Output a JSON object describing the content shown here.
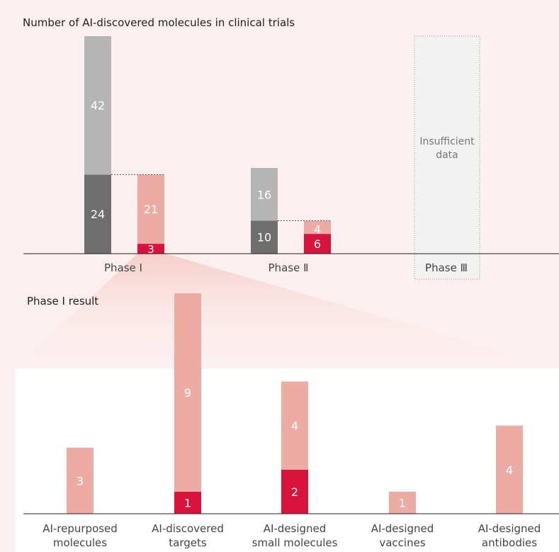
{
  "chart_data": [
    {
      "type": "bar",
      "title": "Number of AI-discovered molecules in clinical trials",
      "categories": [
        "Phase Ⅰ",
        "Phase Ⅱ",
        "Phase Ⅲ"
      ],
      "groups": [
        {
          "name": "",
          "stack": [
            {
              "value": 24,
              "color": "#6e6e6e"
            },
            {
              "value": 42,
              "color": "#b5b5b5"
            }
          ]
        },
        {
          "name": "",
          "stack": [
            {
              "value": 3,
              "color": "#d9143c"
            },
            {
              "value": 21,
              "color": "#ecaca4"
            }
          ]
        }
      ],
      "bars": [
        {
          "category": "Phase Ⅰ",
          "group": 0,
          "segments": [
            24,
            42
          ]
        },
        {
          "category": "Phase Ⅰ",
          "group": 1,
          "segments": [
            3,
            21
          ]
        },
        {
          "category": "Phase Ⅱ",
          "group": 0,
          "segments": [
            10,
            16
          ]
        },
        {
          "category": "Phase Ⅱ",
          "group": 1,
          "segments": [
            6,
            4
          ]
        }
      ],
      "annotations": {
        "Phase Ⅲ": [
          "Insufficient",
          "data"
        ]
      },
      "ylim": [
        0,
        70
      ],
      "grid": false
    },
    {
      "type": "bar",
      "title": "Phase Ⅰ result",
      "categories": [
        [
          "AI-repurposed",
          "molecules"
        ],
        [
          "AI-discovered",
          "targets"
        ],
        [
          "AI-designed",
          "small molecules"
        ],
        [
          "AI-designed",
          "vaccines"
        ],
        [
          "AI-designed",
          "antibodies"
        ]
      ],
      "series": [
        {
          "name": "",
          "color": "#d9143c",
          "values": [
            0,
            1,
            2,
            0,
            0
          ]
        },
        {
          "name": "",
          "color": "#ecaca4",
          "values": [
            3,
            9,
            4,
            1,
            4
          ]
        }
      ],
      "ylim": [
        0,
        11
      ],
      "grid": false
    }
  ]
}
